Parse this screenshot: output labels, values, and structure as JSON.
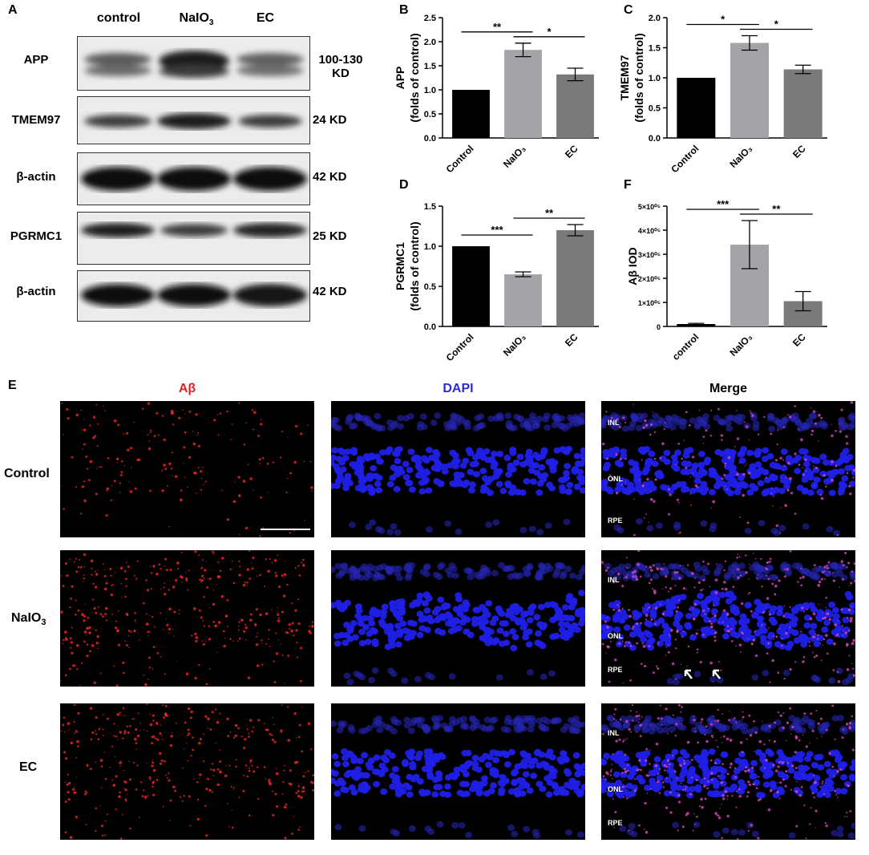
{
  "panels": {
    "A": "A",
    "B": "B",
    "C": "C",
    "D": "D",
    "E": "E",
    "F": "F"
  },
  "western_blot": {
    "lanes": [
      "control",
      "NaIO",
      "EC"
    ],
    "lane_sub": "3",
    "rows": [
      {
        "label": "APP",
        "size_line1": "100-130",
        "size_line2": "KD"
      },
      {
        "label": "TMEM97",
        "size_line1": "24 KD",
        "size_line2": ""
      },
      {
        "label": "β-actin",
        "size_line1": "42 KD",
        "size_line2": ""
      },
      {
        "label": "PGRMC1",
        "size_line1": "25 KD",
        "size_line2": ""
      },
      {
        "label": "β-actin",
        "size_line1": "42 KD",
        "size_line2": ""
      }
    ]
  },
  "chart_data": [
    {
      "panel": "B",
      "type": "bar",
      "categories": [
        "Control",
        "NaIO₃",
        "EC"
      ],
      "values": [
        1.0,
        1.83,
        1.32
      ],
      "errors": [
        0,
        0.14,
        0.13
      ],
      "ylabel_line1": "APP",
      "ylabel_line2": "(folds of control)",
      "ylim": [
        0,
        2.5
      ],
      "ticks": [
        "0.0",
        "0.5",
        "1.0",
        "1.5",
        "2.0",
        "2.5"
      ],
      "bar_colors": [
        "#000000",
        "#a3a3a8",
        "#7a7a7a"
      ],
      "significance": [
        {
          "from": 0,
          "to": 1,
          "label": "**"
        },
        {
          "from": 1,
          "to": 2,
          "label": "*"
        }
      ]
    },
    {
      "panel": "C",
      "type": "bar",
      "categories": [
        "Control",
        "NaIO₃",
        "EC"
      ],
      "values": [
        1.0,
        1.58,
        1.14
      ],
      "errors": [
        0,
        0.12,
        0.07
      ],
      "ylabel_line1": "TMEM97",
      "ylabel_line2": "(folds of control)",
      "ylim": [
        0,
        2.0
      ],
      "ticks": [
        "0.0",
        "0.5",
        "1.0",
        "1.5",
        "2.0"
      ],
      "bar_colors": [
        "#000000",
        "#a3a3a8",
        "#7a7a7a"
      ],
      "significance": [
        {
          "from": 0,
          "to": 1,
          "label": "*"
        },
        {
          "from": 1,
          "to": 2,
          "label": "*"
        }
      ]
    },
    {
      "panel": "D",
      "type": "bar",
      "categories": [
        "Control",
        "NaIO₃",
        "EC"
      ],
      "values": [
        1.0,
        0.65,
        1.2
      ],
      "errors": [
        0,
        0.03,
        0.07
      ],
      "ylabel_line1": "PGRMC1",
      "ylabel_line2": "(folds of control)",
      "ylim": [
        0,
        1.5
      ],
      "ticks": [
        "0.0",
        "0.5",
        "1.0",
        "1.5"
      ],
      "bar_colors": [
        "#000000",
        "#a3a3a8",
        "#7a7a7a"
      ],
      "significance": [
        {
          "from": 0,
          "to": 1,
          "label": "***"
        },
        {
          "from": 1,
          "to": 2,
          "label": "**"
        }
      ]
    },
    {
      "panel": "F",
      "type": "bar",
      "categories": [
        "control",
        "NaIO₃",
        "EC"
      ],
      "values": [
        10000,
        340000,
        105000
      ],
      "errors": [
        3000,
        100000,
        40000
      ],
      "ylabel_line1": "Aβ IOD",
      "ylabel_line2": "",
      "ylim": [
        0,
        500000
      ],
      "ticks": [
        "0",
        "1×10⁰⁵",
        "2×10⁰⁵",
        "3×10⁰⁵",
        "4×10⁰⁵",
        "5×10⁰⁵"
      ],
      "bar_colors": [
        "#000000",
        "#a3a3a8",
        "#7a7a7a"
      ],
      "significance": [
        {
          "from": 0,
          "to": 1,
          "label": "***"
        },
        {
          "from": 1,
          "to": 2,
          "label": "**"
        }
      ]
    }
  ],
  "microscopy": {
    "columns": [
      {
        "label": "Aβ",
        "color": "#e02020"
      },
      {
        "label": "DAPI",
        "color": "#2b2bdc"
      },
      {
        "label": "Merge",
        "color": "#000000"
      }
    ],
    "rows": [
      "Control",
      "NaIO",
      "EC"
    ],
    "row_sub": "3",
    "layers": [
      "INL",
      "ONL",
      "RPE"
    ]
  }
}
